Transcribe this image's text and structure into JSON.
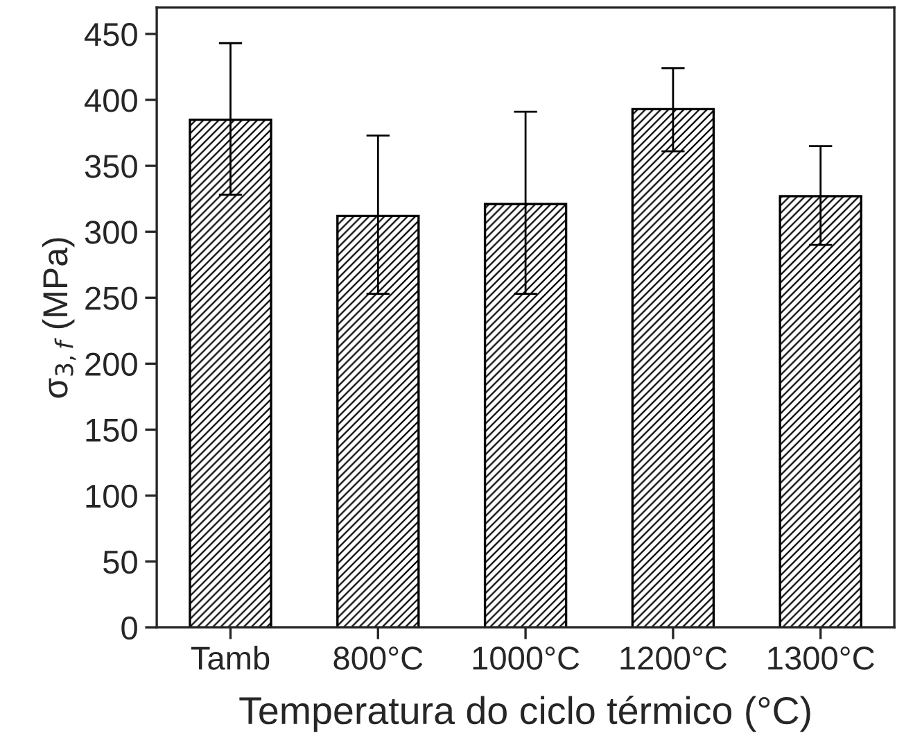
{
  "chart_data": {
    "type": "bar",
    "xlabel": "Temperatura do ciclo térmico (°C)",
    "ylabel": "σ$_{3,f}$ (MPa)",
    "categories": [
      "Tamb",
      "800°C",
      "1000°C",
      "1200°C",
      "1300°C"
    ],
    "values": [
      385,
      312,
      321,
      393,
      327
    ],
    "errors": [
      [
        328,
        443
      ],
      [
        253,
        373
      ],
      [
        253,
        391
      ],
      [
        361,
        424
      ],
      [
        290,
        365
      ]
    ],
    "color": "#000000",
    "ylim": [
      0,
      470
    ],
    "yticks": [
      0,
      50,
      100,
      150,
      200,
      250,
      300,
      350,
      400,
      450
    ],
    "grid": false
  }
}
